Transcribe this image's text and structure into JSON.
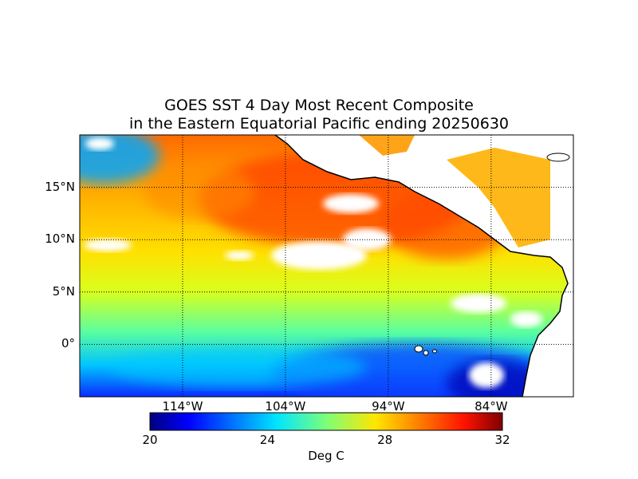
{
  "title": {
    "line1": "GOES SST 4 Day Most Recent Composite",
    "line2": "in the Eastern Equatorial Pacific ending 20250630"
  },
  "map": {
    "lon_range": [
      -124,
      -76
    ],
    "lat_range": [
      -5,
      20
    ],
    "lat_labels": [
      {
        "value": 15,
        "label": "15°N"
      },
      {
        "value": 10,
        "label": "10°N"
      },
      {
        "value": 5,
        "label": "5°N"
      },
      {
        "value": 0,
        "label": "0°"
      }
    ],
    "lon_labels": [
      {
        "value": -114,
        "label": "114°W"
      },
      {
        "value": -104,
        "label": "104°W"
      },
      {
        "value": -94,
        "label": "94°W"
      },
      {
        "value": -84,
        "label": "84°W"
      }
    ],
    "grid": "dotted",
    "land_color": "#ffffff",
    "coastline_color": "#000000"
  },
  "colorbar": {
    "min": 20,
    "max": 32,
    "ticks": [
      "20",
      "24",
      "28",
      "32"
    ],
    "label": "Deg C",
    "colormap": "jet",
    "orientation": "horizontal"
  }
}
